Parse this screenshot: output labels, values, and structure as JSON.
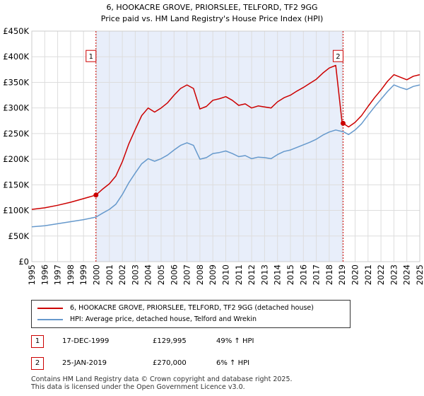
{
  "chart_data": {
    "type": "line",
    "title": "6, HOOKACRE GROVE, PRIORSLEE, TELFORD, TF2 9GG",
    "subtitle": "Price paid vs. HM Land Registry's House Price Index (HPI)",
    "xlabel": "",
    "ylabel": "",
    "xlim": [
      1995,
      2025
    ],
    "ylim": [
      0,
      450000
    ],
    "grid": true,
    "x_ticks": [
      1995,
      1996,
      1997,
      1998,
      1999,
      2000,
      2001,
      2002,
      2003,
      2004,
      2005,
      2006,
      2007,
      2008,
      2009,
      2010,
      2011,
      2012,
      2013,
      2014,
      2015,
      2016,
      2017,
      2018,
      2019,
      2020,
      2021,
      2022,
      2023,
      2024,
      2025
    ],
    "y_ticks": [
      0,
      50000,
      100000,
      150000,
      200000,
      250000,
      300000,
      350000,
      400000,
      450000
    ],
    "y_tick_labels": [
      "£0",
      "£50K",
      "£100K",
      "£150K",
      "£200K",
      "£250K",
      "£300K",
      "£350K",
      "£400K",
      "£450K"
    ],
    "shaded_region": [
      1999.96,
      2019.07
    ],
    "series": [
      {
        "name": "6, HOOKACRE GROVE, PRIORSLEE, TELFORD, TF2 9GG (detached house)",
        "color": "#cc0000",
        "x": [
          1995,
          1996,
          1997,
          1998,
          1999,
          1999.96,
          2000.5,
          2001,
          2001.5,
          2002,
          2002.5,
          2003,
          2003.5,
          2004,
          2004.5,
          2005,
          2005.5,
          2006,
          2006.5,
          2007,
          2007.5,
          2008,
          2008.5,
          2009,
          2009.5,
          2010,
          2010.5,
          2011,
          2011.5,
          2012,
          2012.5,
          2013,
          2013.5,
          2014,
          2014.5,
          2015,
          2015.5,
          2016,
          2016.5,
          2017,
          2017.5,
          2018,
          2018.5,
          2019,
          2019.07,
          2019.5,
          2020,
          2020.5,
          2021,
          2021.5,
          2022,
          2022.5,
          2023,
          2023.5,
          2024,
          2024.5,
          2025
        ],
        "values": [
          102000,
          105000,
          110000,
          116000,
          123000,
          129995,
          142000,
          152000,
          167000,
          195000,
          230000,
          258000,
          285000,
          300000,
          292000,
          300000,
          310000,
          325000,
          338000,
          345000,
          338000,
          298000,
          303000,
          315000,
          318000,
          322000,
          315000,
          305000,
          308000,
          300000,
          304000,
          302000,
          300000,
          312000,
          320000,
          325000,
          333000,
          340000,
          348000,
          356000,
          368000,
          378000,
          383000,
          270000,
          270000,
          263000,
          272000,
          285000,
          303000,
          320000,
          335000,
          352000,
          365000,
          360000,
          355000,
          362000,
          365000
        ]
      },
      {
        "name": "HPI: Average price, detached house, Telford and Wrekin",
        "color": "#6699cc",
        "x": [
          1995,
          1996,
          1997,
          1998,
          1999,
          1999.96,
          2000.5,
          2001,
          2001.5,
          2002,
          2002.5,
          2003,
          2003.5,
          2004,
          2004.5,
          2005,
          2005.5,
          2006,
          2006.5,
          2007,
          2007.5,
          2008,
          2008.5,
          2009,
          2009.5,
          2010,
          2010.5,
          2011,
          2011.5,
          2012,
          2012.5,
          2013,
          2013.5,
          2014,
          2014.5,
          2015,
          2015.5,
          2016,
          2016.5,
          2017,
          2017.5,
          2018,
          2018.5,
          2019,
          2019.07,
          2019.5,
          2020,
          2020.5,
          2021,
          2021.5,
          2022,
          2022.5,
          2023,
          2023.5,
          2024,
          2024.5,
          2025
        ],
        "values": [
          68000,
          70000,
          74000,
          78000,
          82000,
          87000,
          95000,
          102000,
          112000,
          131000,
          154000,
          173000,
          191000,
          201000,
          196000,
          201000,
          208000,
          218000,
          227000,
          232000,
          227000,
          200000,
          203000,
          211000,
          213000,
          216000,
          211000,
          205000,
          207000,
          201000,
          204000,
          203000,
          201000,
          209000,
          215000,
          218000,
          223000,
          228000,
          233000,
          239000,
          247000,
          253000,
          257000,
          254000,
          254000,
          248000,
          257000,
          269000,
          286000,
          302000,
          317000,
          332000,
          345000,
          340000,
          336000,
          342000,
          345000
        ]
      }
    ],
    "sale_points": [
      {
        "label": "1",
        "x": 1999.96,
        "value": 129995
      },
      {
        "label": "2",
        "x": 2019.07,
        "value": 270000
      }
    ]
  },
  "legend": {
    "entries": [
      {
        "label": "6, HOOKACRE GROVE, PRIORSLEE, TELFORD, TF2 9GG (detached house)",
        "color": "#cc0000"
      },
      {
        "label": "HPI: Average price, detached house, Telford and Wrekin",
        "color": "#6699cc"
      }
    ]
  },
  "transactions": [
    {
      "badge": "1",
      "date": "17-DEC-1999",
      "price": "£129,995",
      "hpi": "49% ↑ HPI"
    },
    {
      "badge": "2",
      "date": "25-JAN-2019",
      "price": "£270,000",
      "hpi": "6% ↑ HPI"
    }
  ],
  "footer": {
    "line1": "Contains HM Land Registry data © Crown copyright and database right 2025.",
    "line2": "This data is licensed under the Open Government Licence v3.0."
  }
}
